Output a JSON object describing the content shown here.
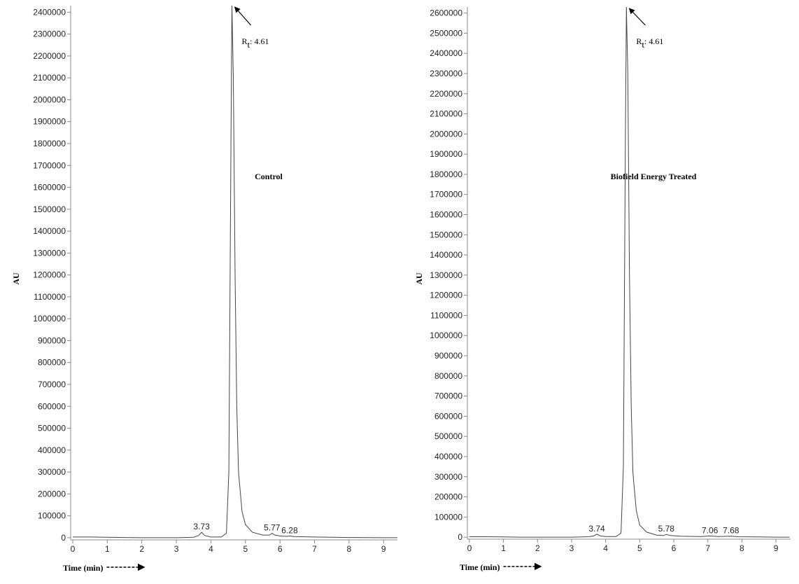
{
  "chart_data": [
    {
      "type": "line",
      "title": "Control",
      "xlabel": "Time (min)",
      "ylabel": "AU",
      "color": "#444444",
      "annotation": {
        "label": "R",
        "subscript": "t",
        "text": ": 4.61"
      },
      "peak_labels": [
        3.73,
        5.77,
        6.28
      ],
      "x": [
        0,
        0.5,
        1,
        1.5,
        2,
        2.5,
        3,
        3.5,
        3.65,
        3.73,
        3.82,
        4.0,
        4.3,
        4.45,
        4.52,
        4.58,
        4.61,
        4.65,
        4.7,
        4.75,
        4.8,
        4.9,
        5.0,
        5.2,
        5.5,
        5.7,
        5.77,
        5.85,
        6.0,
        6.2,
        6.28,
        6.4,
        7,
        8,
        9,
        9.4
      ],
      "values": [
        3000,
        3000,
        2000,
        1000,
        0,
        0,
        0,
        2000,
        10000,
        25000,
        10000,
        3000,
        3000,
        20000,
        300000,
        1800000,
        2430000,
        2100000,
        1200000,
        600000,
        300000,
        120000,
        60000,
        25000,
        12000,
        12000,
        20000,
        12000,
        8000,
        6000,
        8000,
        5000,
        3000,
        1000,
        0,
        0
      ],
      "xlim": [
        -0.06,
        9.4
      ],
      "xticks": [
        0,
        1,
        2,
        3,
        4,
        5,
        6,
        7,
        8,
        9
      ],
      "ylim": [
        -10000,
        2430000
      ],
      "yticks": [
        0,
        100000,
        200000,
        300000,
        400000,
        500000,
        600000,
        700000,
        800000,
        900000,
        1000000,
        1100000,
        1200000,
        1300000,
        1400000,
        1500000,
        1600000,
        1700000,
        1800000,
        1900000,
        2000000,
        2100000,
        2200000,
        2300000,
        2400000
      ]
    },
    {
      "type": "line",
      "title": "Biofield Energy Treated",
      "xlabel": "Time (min)",
      "ylabel": "AU",
      "color": "#444444",
      "annotation": {
        "label": "R",
        "subscript": "t",
        "text": ": 4.61"
      },
      "peak_labels": [
        3.74,
        5.78,
        7.06,
        7.68
      ],
      "x": [
        0,
        0.5,
        1,
        1.5,
        2,
        2.5,
        3,
        3.5,
        3.65,
        3.74,
        3.85,
        4.0,
        4.3,
        4.45,
        4.52,
        4.58,
        4.61,
        4.65,
        4.7,
        4.75,
        4.8,
        4.9,
        5.0,
        5.2,
        5.5,
        5.7,
        5.78,
        5.9,
        6.2,
        6.8,
        7.06,
        7.3,
        7.68,
        7.9,
        8.5,
        9,
        9.4
      ],
      "values": [
        2000,
        2000,
        1000,
        0,
        0,
        0,
        0,
        2000,
        6000,
        15000,
        6000,
        3000,
        3000,
        20000,
        350000,
        2000000,
        2630000,
        2300000,
        1300000,
        650000,
        320000,
        130000,
        60000,
        25000,
        10000,
        8000,
        14000,
        8000,
        5000,
        3000,
        6000,
        3000,
        5000,
        2000,
        1000,
        0,
        0
      ],
      "xlim": [
        -0.06,
        9.43
      ],
      "xticks": [
        0,
        1,
        2,
        3,
        4,
        5,
        6,
        7,
        8,
        9
      ],
      "ylim": [
        -10000,
        2630000
      ],
      "yticks": [
        0,
        100000,
        200000,
        300000,
        400000,
        500000,
        600000,
        700000,
        800000,
        900000,
        1000000,
        1100000,
        1200000,
        1300000,
        1400000,
        1500000,
        1600000,
        1700000,
        1800000,
        1900000,
        2000000,
        2100000,
        2200000,
        2300000,
        2400000,
        2500000,
        2600000
      ]
    }
  ]
}
